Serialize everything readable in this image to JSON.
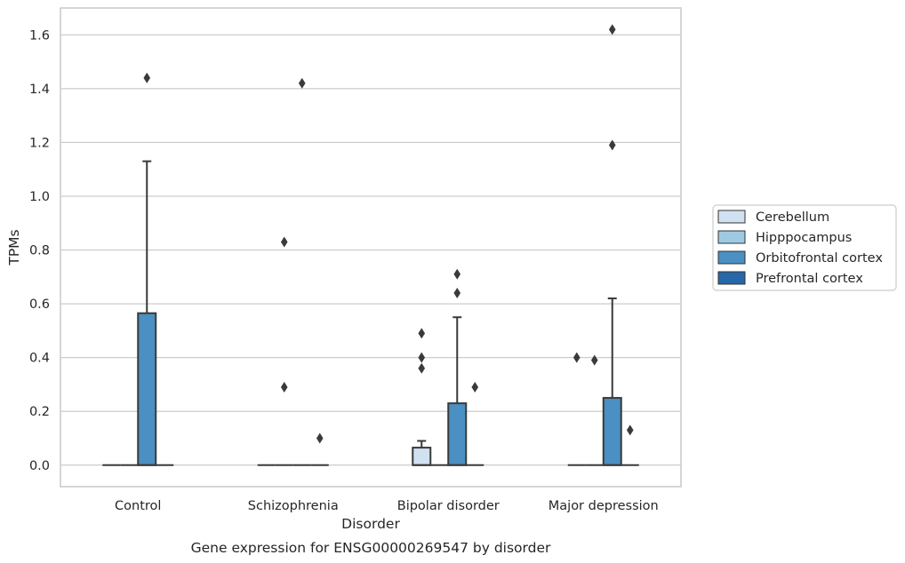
{
  "chart_data": {
    "type": "box",
    "title": "",
    "caption": "Gene expression for ENSG00000269547 by disorder",
    "xlabel": "Disorder",
    "ylabel": "TPMs",
    "categories": [
      "Control",
      "Schizophrenia",
      "Bipolar disorder",
      "Major depression"
    ],
    "ylim": [
      -0.08,
      1.7
    ],
    "yticks": [
      0.0,
      0.2,
      0.4,
      0.6,
      0.8,
      1.0,
      1.2,
      1.4,
      1.6
    ],
    "grid": "horizontal",
    "legend_position": "right",
    "series": [
      {
        "name": "Cerebellum",
        "color": "#d0e1f2",
        "boxes": [
          {
            "q1": 0,
            "median": 0,
            "q3": 0,
            "whisker_low": 0,
            "whisker_high": 0,
            "outliers": []
          },
          {
            "q1": 0,
            "median": 0,
            "q3": 0,
            "whisker_low": 0,
            "whisker_high": 0,
            "outliers": []
          },
          {
            "q1": 0,
            "median": 0,
            "q3": 0.065,
            "whisker_low": 0,
            "whisker_high": 0.09,
            "outliers": [
              0.36,
              0.4,
              0.49
            ]
          },
          {
            "q1": 0,
            "median": 0,
            "q3": 0,
            "whisker_low": 0,
            "whisker_high": 0,
            "outliers": [
              0.4
            ]
          }
        ]
      },
      {
        "name": "Hipppocampus",
        "color": "#9ecae1",
        "boxes": [
          {
            "q1": 0,
            "median": 0,
            "q3": 0,
            "whisker_low": 0,
            "whisker_high": 0,
            "outliers": []
          },
          {
            "q1": 0,
            "median": 0,
            "q3": 0,
            "whisker_low": 0,
            "whisker_high": 0,
            "outliers": [
              0.29,
              0.83
            ]
          },
          {
            "q1": 0,
            "median": 0,
            "q3": 0,
            "whisker_low": 0,
            "whisker_high": 0,
            "outliers": []
          },
          {
            "q1": 0,
            "median": 0,
            "q3": 0,
            "whisker_low": 0,
            "whisker_high": 0,
            "outliers": [
              0.39
            ]
          }
        ]
      },
      {
        "name": "Orbitofrontal cortex",
        "color": "#4a90c2",
        "boxes": [
          {
            "q1": 0,
            "median": 0,
            "q3": 0.565,
            "whisker_low": 0,
            "whisker_high": 1.13,
            "outliers": [
              1.44
            ]
          },
          {
            "q1": 0,
            "median": 0,
            "q3": 0,
            "whisker_low": 0,
            "whisker_high": 0,
            "outliers": [
              1.42
            ]
          },
          {
            "q1": 0,
            "median": 0,
            "q3": 0.23,
            "whisker_low": 0,
            "whisker_high": 0.55,
            "outliers": [
              0.64,
              0.71
            ]
          },
          {
            "q1": 0,
            "median": 0,
            "q3": 0.25,
            "whisker_low": 0,
            "whisker_high": 0.62,
            "outliers": [
              1.19,
              1.62
            ]
          }
        ]
      },
      {
        "name": "Prefrontal cortex",
        "color": "#2767a8",
        "boxes": [
          {
            "q1": 0,
            "median": 0,
            "q3": 0,
            "whisker_low": 0,
            "whisker_high": 0,
            "outliers": []
          },
          {
            "q1": 0,
            "median": 0,
            "q3": 0,
            "whisker_low": 0,
            "whisker_high": 0,
            "outliers": [
              0.1
            ]
          },
          {
            "q1": 0,
            "median": 0,
            "q3": 0,
            "whisker_low": 0,
            "whisker_high": 0,
            "outliers": [
              0.29
            ]
          },
          {
            "q1": 0,
            "median": 0,
            "q3": 0,
            "whisker_low": 0,
            "whisker_high": 0,
            "outliers": [
              0.13
            ]
          }
        ]
      }
    ]
  }
}
